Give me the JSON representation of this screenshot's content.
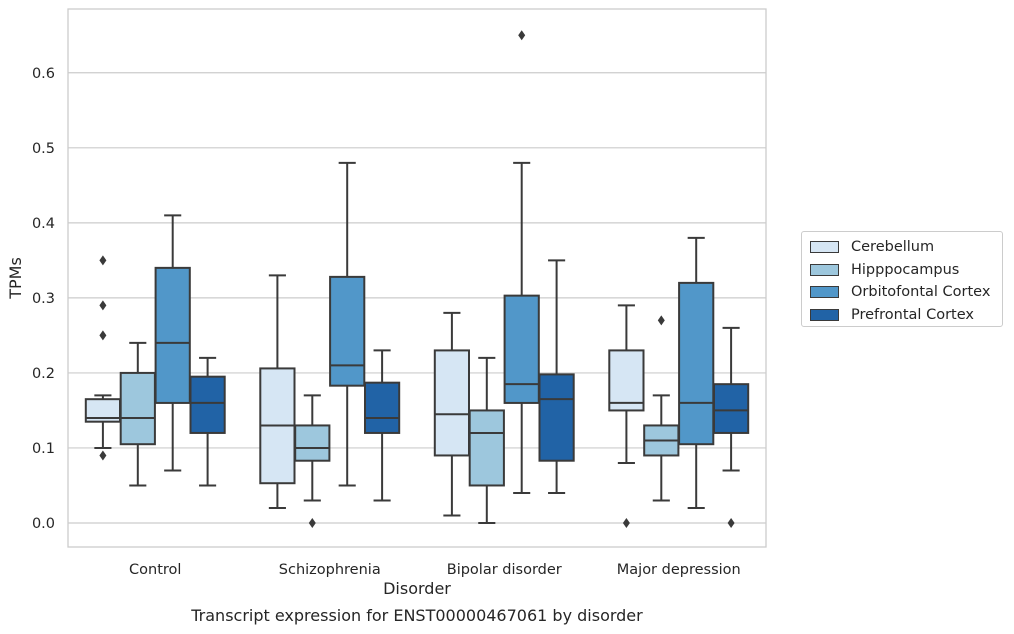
{
  "chart_data": {
    "type": "boxplot",
    "xlabel": "Disorder",
    "ylabel": "TPMs",
    "caption": "Transcript expression for ENST00000467061 by disorder",
    "ylim": [
      -0.032,
      0.685
    ],
    "yticks": [
      0.0,
      0.1,
      0.2,
      0.3,
      0.4,
      0.5,
      0.6
    ],
    "ytick_labels": [
      "0.0",
      "0.1",
      "0.2",
      "0.3",
      "0.4",
      "0.5",
      "0.6"
    ],
    "grid": true,
    "legend_position": "right",
    "categories": [
      "Control",
      "Schizophrenia",
      "Bipolar disorder",
      "Major depression"
    ],
    "series": [
      {
        "name": "Cerebellum",
        "color": "#d6e6f4",
        "boxes": [
          {
            "category": "Control",
            "whislo": 0.1,
            "q1": 0.135,
            "med": 0.14,
            "q3": 0.165,
            "whishi": 0.17,
            "fliers": [
              0.35,
              0.29,
              0.25,
              0.09
            ]
          },
          {
            "category": "Schizophrenia",
            "whislo": 0.02,
            "q1": 0.053,
            "med": 0.13,
            "q3": 0.206,
            "whishi": 0.33,
            "fliers": []
          },
          {
            "category": "Bipolar disorder",
            "whislo": 0.01,
            "q1": 0.09,
            "med": 0.145,
            "q3": 0.23,
            "whishi": 0.28,
            "fliers": []
          },
          {
            "category": "Major depression",
            "whislo": 0.08,
            "q1": 0.15,
            "med": 0.16,
            "q3": 0.23,
            "whishi": 0.29,
            "fliers": [
              0.0
            ]
          }
        ]
      },
      {
        "name": "Hipppocampus",
        "color": "#9dc7dd",
        "boxes": [
          {
            "category": "Control",
            "whislo": 0.05,
            "q1": 0.105,
            "med": 0.14,
            "q3": 0.2,
            "whishi": 0.24,
            "fliers": []
          },
          {
            "category": "Schizophrenia",
            "whislo": 0.03,
            "q1": 0.083,
            "med": 0.1,
            "q3": 0.13,
            "whishi": 0.17,
            "fliers": [
              0.0
            ]
          },
          {
            "category": "Bipolar disorder",
            "whislo": 0.0,
            "q1": 0.05,
            "med": 0.12,
            "q3": 0.15,
            "whishi": 0.22,
            "fliers": []
          },
          {
            "category": "Major depression",
            "whislo": 0.03,
            "q1": 0.09,
            "med": 0.11,
            "q3": 0.13,
            "whishi": 0.17,
            "fliers": [
              0.27
            ]
          }
        ]
      },
      {
        "name": "Orbitofontal Cortex",
        "color": "#5197c9",
        "boxes": [
          {
            "category": "Control",
            "whislo": 0.07,
            "q1": 0.16,
            "med": 0.24,
            "q3": 0.34,
            "whishi": 0.41,
            "fliers": []
          },
          {
            "category": "Schizophrenia",
            "whislo": 0.05,
            "q1": 0.183,
            "med": 0.21,
            "q3": 0.328,
            "whishi": 0.48,
            "fliers": []
          },
          {
            "category": "Bipolar disorder",
            "whislo": 0.04,
            "q1": 0.16,
            "med": 0.185,
            "q3": 0.303,
            "whishi": 0.48,
            "fliers": [
              0.65
            ]
          },
          {
            "category": "Major depression",
            "whislo": 0.02,
            "q1": 0.105,
            "med": 0.16,
            "q3": 0.32,
            "whishi": 0.38,
            "fliers": []
          }
        ]
      },
      {
        "name": "Prefrontal Cortex",
        "color": "#2163a6",
        "boxes": [
          {
            "category": "Control",
            "whislo": 0.05,
            "q1": 0.12,
            "med": 0.16,
            "q3": 0.195,
            "whishi": 0.22,
            "fliers": []
          },
          {
            "category": "Schizophrenia",
            "whislo": 0.03,
            "q1": 0.12,
            "med": 0.14,
            "q3": 0.187,
            "whishi": 0.23,
            "fliers": []
          },
          {
            "category": "Bipolar disorder",
            "whislo": 0.04,
            "q1": 0.083,
            "med": 0.165,
            "q3": 0.198,
            "whishi": 0.35,
            "fliers": []
          },
          {
            "category": "Major depression",
            "whislo": 0.07,
            "q1": 0.12,
            "med": 0.15,
            "q3": 0.185,
            "whishi": 0.26,
            "fliers": [
              0.0
            ]
          }
        ]
      }
    ]
  }
}
